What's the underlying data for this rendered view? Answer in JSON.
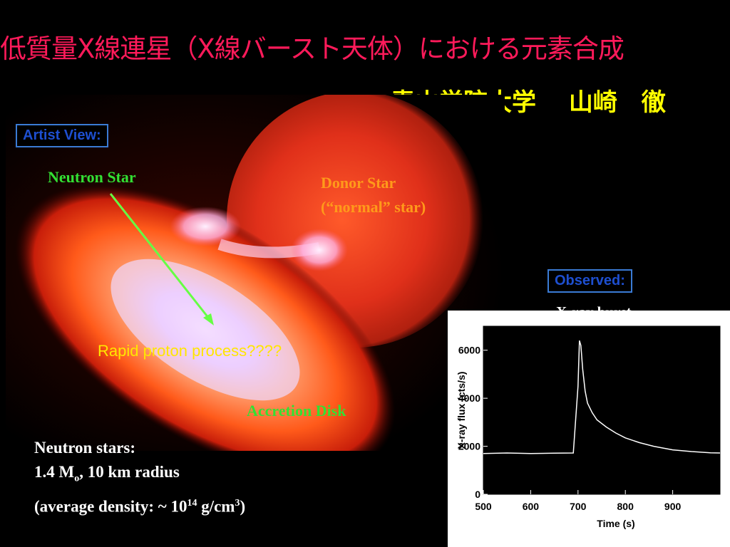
{
  "title": "低質量X線連星（X線バースト天体）における元素合成",
  "author": "青山学院大学　 山崎　徹",
  "artist_view": {
    "label": "Artist View:",
    "neutron_star_label": "Neutron Star",
    "donor_star_label_1": "Donor Star",
    "donor_star_label_2": "(“normal” star)",
    "process_label": "Rapid proton process????",
    "disk_label": "Accretion Disk"
  },
  "facts": {
    "line1": "Neutron stars:",
    "mass_prefix": "1.4 M",
    "mass_sub": "o",
    "mass_suffix": ", 10 km radius",
    "density_prefix": "(average density: ~ 10",
    "density_exp": "14",
    "density_mid": " g/cm",
    "density_unit_exp": "3",
    "density_suffix": ")"
  },
  "observed": {
    "label": "Observed:",
    "caption": "X-ray burst"
  },
  "chart_data": {
    "type": "line",
    "title": "X-ray burst",
    "xlabel": "Time (s)",
    "ylabel": "X-ray flux (cts/s)",
    "xlim": [
      500,
      1000
    ],
    "ylim": [
      0,
      7000
    ],
    "xticks": [
      500,
      600,
      700,
      800,
      900
    ],
    "yticks": [
      0,
      2000,
      4000,
      6000
    ],
    "xtick_labels": [
      "500",
      "600",
      "700",
      "800",
      "900"
    ],
    "ytick_labels": [
      "0",
      "2000",
      "4000",
      "6000"
    ],
    "series": [
      {
        "x": [
          500,
          550,
          600,
          650,
          690,
          700,
          703,
          706,
          710,
          715,
          720,
          730,
          740,
          760,
          780,
          800,
          830,
          860,
          900,
          940,
          980,
          1000
        ],
        "y": [
          1700,
          1720,
          1700,
          1710,
          1720,
          4500,
          6400,
          6200,
          5200,
          4300,
          3800,
          3400,
          3100,
          2800,
          2550,
          2350,
          2150,
          2000,
          1850,
          1780,
          1730,
          1720
        ]
      }
    ]
  },
  "colors": {
    "title": "#ff1a5a",
    "subtitle": "#ffff00",
    "box_text": "#1e4fd0",
    "arrow": "#66ff44"
  }
}
